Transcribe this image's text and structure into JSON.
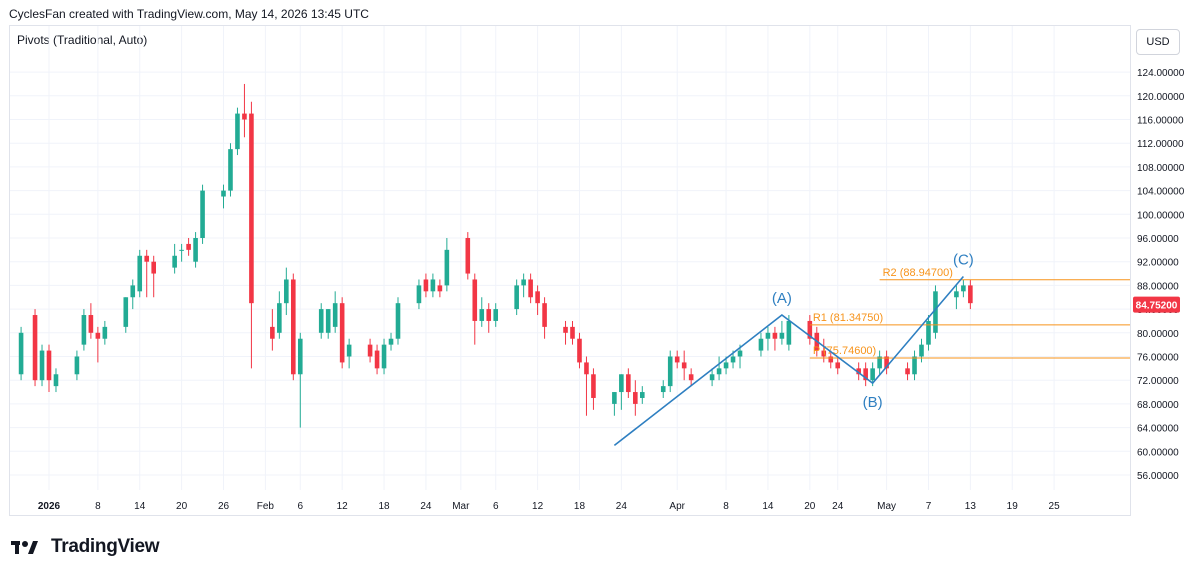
{
  "header": {
    "title": "CyclesFan created with TradingView.com, May 14, 2026 13:45 UTC",
    "indicator": "Pivots (Traditional, Auto)",
    "currency": "USD"
  },
  "footer": {
    "brand": "TradingView",
    "logo_icon": "tradingview-logo-icon"
  },
  "colors": {
    "up": "#22ab94",
    "down": "#f23645",
    "wave": "#2e7fc1",
    "pivot": "#f7931a",
    "grid": "#f0f3fa",
    "price_label": "#f23645"
  },
  "chart_data": {
    "type": "candlestick",
    "title": "",
    "xlabel": "",
    "ylabel": "",
    "ylim": [
      52,
      128
    ],
    "grid": true,
    "y_ticks": [
      "124.00000",
      "120.00000",
      "116.00000",
      "112.00000",
      "108.00000",
      "104.00000",
      "100.00000",
      "96.00000",
      "92.00000",
      "88.00000",
      "84.00000",
      "80.00000",
      "76.00000",
      "72.00000",
      "68.00000",
      "64.00000",
      "60.00000",
      "56.00000"
    ],
    "x_ticks": [
      {
        "label": "2026",
        "day": 0,
        "bold": true
      },
      {
        "label": "8",
        "day": 7
      },
      {
        "label": "14",
        "day": 13
      },
      {
        "label": "20",
        "day": 19
      },
      {
        "label": "26",
        "day": 25
      },
      {
        "label": "Feb",
        "day": 31
      },
      {
        "label": "6",
        "day": 36
      },
      {
        "label": "12",
        "day": 42
      },
      {
        "label": "18",
        "day": 48
      },
      {
        "label": "24",
        "day": 54
      },
      {
        "label": "Mar",
        "day": 59
      },
      {
        "label": "6",
        "day": 64
      },
      {
        "label": "12",
        "day": 70
      },
      {
        "label": "18",
        "day": 76
      },
      {
        "label": "24",
        "day": 82
      },
      {
        "label": "Apr",
        "day": 90
      },
      {
        "label": "8",
        "day": 97
      },
      {
        "label": "14",
        "day": 103
      },
      {
        "label": "20",
        "day": 109
      },
      {
        "label": "24",
        "day": 113
      },
      {
        "label": "May",
        "day": 120
      },
      {
        "label": "7",
        "day": 126
      },
      {
        "label": "13",
        "day": 132
      },
      {
        "label": "19",
        "day": 138
      },
      {
        "label": "25",
        "day": 144
      }
    ],
    "candles": [
      {
        "d": -4,
        "o": 73,
        "h": 81,
        "l": 72,
        "c": 80
      },
      {
        "d": -2,
        "o": 83,
        "h": 84,
        "l": 71,
        "c": 72
      },
      {
        "d": -1,
        "o": 72,
        "h": 78,
        "l": 71,
        "c": 77
      },
      {
        "d": 0,
        "o": 77,
        "h": 78,
        "l": 70,
        "c": 72
      },
      {
        "d": 1,
        "o": 71,
        "h": 74,
        "l": 70,
        "c": 73
      },
      {
        "d": 4,
        "o": 73,
        "h": 77,
        "l": 72,
        "c": 76
      },
      {
        "d": 5,
        "o": 78,
        "h": 84,
        "l": 77,
        "c": 83
      },
      {
        "d": 6,
        "o": 83,
        "h": 85,
        "l": 79,
        "c": 80
      },
      {
        "d": 7,
        "o": 80,
        "h": 81,
        "l": 75,
        "c": 79
      },
      {
        "d": 8,
        "o": 79,
        "h": 82,
        "l": 78,
        "c": 81
      },
      {
        "d": 11,
        "o": 81,
        "h": 86,
        "l": 80,
        "c": 86
      },
      {
        "d": 12,
        "o": 86,
        "h": 89,
        "l": 84,
        "c": 88
      },
      {
        "d": 13,
        "o": 87,
        "h": 94,
        "l": 86,
        "c": 93
      },
      {
        "d": 14,
        "o": 93,
        "h": 94,
        "l": 86,
        "c": 92
      },
      {
        "d": 15,
        "o": 92,
        "h": 93,
        "l": 86,
        "c": 90
      },
      {
        "d": 18,
        "o": 91,
        "h": 95,
        "l": 90,
        "c": 93
      },
      {
        "d": 19,
        "o": 94,
        "h": 95,
        "l": 92,
        "c": 94
      },
      {
        "d": 20,
        "o": 95,
        "h": 96,
        "l": 93,
        "c": 94
      },
      {
        "d": 21,
        "o": 92,
        "h": 97,
        "l": 91,
        "c": 96
      },
      {
        "d": 22,
        "o": 96,
        "h": 105,
        "l": 95,
        "c": 104
      },
      {
        "d": 25,
        "o": 103,
        "h": 105,
        "l": 101,
        "c": 104
      },
      {
        "d": 26,
        "o": 104,
        "h": 112,
        "l": 103,
        "c": 111
      },
      {
        "d": 27,
        "o": 111,
        "h": 118,
        "l": 110,
        "c": 117
      },
      {
        "d": 28,
        "o": 117,
        "h": 122,
        "l": 113,
        "c": 116
      },
      {
        "d": 29,
        "o": 117,
        "h": 119,
        "l": 74,
        "c": 85
      },
      {
        "d": 32,
        "o": 81,
        "h": 84,
        "l": 77,
        "c": 79
      },
      {
        "d": 33,
        "o": 80,
        "h": 87,
        "l": 79,
        "c": 85
      },
      {
        "d": 34,
        "o": 85,
        "h": 91,
        "l": 83,
        "c": 89
      },
      {
        "d": 35,
        "o": 89,
        "h": 90,
        "l": 72,
        "c": 73
      },
      {
        "d": 36,
        "o": 73,
        "h": 80,
        "l": 64,
        "c": 79
      },
      {
        "d": 39,
        "o": 80,
        "h": 85,
        "l": 79,
        "c": 84
      },
      {
        "d": 40,
        "o": 80,
        "h": 84,
        "l": 79,
        "c": 84
      },
      {
        "d": 41,
        "o": 81,
        "h": 87,
        "l": 80,
        "c": 85
      },
      {
        "d": 42,
        "o": 85,
        "h": 86,
        "l": 74,
        "c": 75
      },
      {
        "d": 43,
        "o": 76,
        "h": 79,
        "l": 74,
        "c": 78
      },
      {
        "d": 46,
        "o": 78,
        "h": 79,
        "l": 75,
        "c": 76
      },
      {
        "d": 47,
        "o": 77,
        "h": 78,
        "l": 73,
        "c": 74
      },
      {
        "d": 48,
        "o": 74,
        "h": 79,
        "l": 73,
        "c": 78
      },
      {
        "d": 49,
        "o": 78,
        "h": 80,
        "l": 77,
        "c": 79
      },
      {
        "d": 50,
        "o": 79,
        "h": 86,
        "l": 78,
        "c": 85
      },
      {
        "d": 53,
        "o": 85,
        "h": 89,
        "l": 84,
        "c": 88
      },
      {
        "d": 54,
        "o": 89,
        "h": 90,
        "l": 86,
        "c": 87
      },
      {
        "d": 55,
        "o": 87,
        "h": 90,
        "l": 86,
        "c": 89
      },
      {
        "d": 56,
        "o": 88,
        "h": 89,
        "l": 86,
        "c": 87
      },
      {
        "d": 57,
        "o": 88,
        "h": 96,
        "l": 87,
        "c": 94
      },
      {
        "d": 60,
        "o": 96,
        "h": 97,
        "l": 89,
        "c": 90
      },
      {
        "d": 61,
        "o": 89,
        "h": 90,
        "l": 78,
        "c": 82
      },
      {
        "d": 62,
        "o": 82,
        "h": 86,
        "l": 81,
        "c": 84
      },
      {
        "d": 63,
        "o": 84,
        "h": 85,
        "l": 80,
        "c": 82
      },
      {
        "d": 64,
        "o": 82,
        "h": 85,
        "l": 81,
        "c": 84
      },
      {
        "d": 67,
        "o": 84,
        "h": 89,
        "l": 83,
        "c": 88
      },
      {
        "d": 68,
        "o": 88,
        "h": 90,
        "l": 86,
        "c": 89
      },
      {
        "d": 69,
        "o": 89,
        "h": 90,
        "l": 85,
        "c": 86
      },
      {
        "d": 70,
        "o": 87,
        "h": 88,
        "l": 83,
        "c": 85
      },
      {
        "d": 71,
        "o": 85,
        "h": 86,
        "l": 79,
        "c": 81
      },
      {
        "d": 74,
        "o": 81,
        "h": 82,
        "l": 78,
        "c": 80
      },
      {
        "d": 75,
        "o": 81,
        "h": 82,
        "l": 78,
        "c": 79
      },
      {
        "d": 76,
        "o": 79,
        "h": 80,
        "l": 74,
        "c": 75
      },
      {
        "d": 77,
        "o": 75,
        "h": 76,
        "l": 66,
        "c": 73
      },
      {
        "d": 78,
        "o": 73,
        "h": 74,
        "l": 67,
        "c": 69
      },
      {
        "d": 81,
        "o": 68,
        "h": 70,
        "l": 66,
        "c": 70
      },
      {
        "d": 82,
        "o": 70,
        "h": 73,
        "l": 67,
        "c": 73
      },
      {
        "d": 83,
        "o": 73,
        "h": 74,
        "l": 69,
        "c": 70
      },
      {
        "d": 84,
        "o": 70,
        "h": 72,
        "l": 66,
        "c": 68
      },
      {
        "d": 85,
        "o": 69,
        "h": 71,
        "l": 68,
        "c": 70
      },
      {
        "d": 88,
        "o": 70,
        "h": 72,
        "l": 69,
        "c": 71
      },
      {
        "d": 89,
        "o": 71,
        "h": 77,
        "l": 70,
        "c": 76
      },
      {
        "d": 90,
        "o": 76,
        "h": 77,
        "l": 74,
        "c": 75
      },
      {
        "d": 91,
        "o": 75,
        "h": 77,
        "l": 72,
        "c": 74
      },
      {
        "d": 92,
        "o": 73,
        "h": 74,
        "l": 71,
        "c": 72
      },
      {
        "d": 95,
        "o": 72,
        "h": 74,
        "l": 71,
        "c": 73
      },
      {
        "d": 96,
        "o": 73,
        "h": 76,
        "l": 72,
        "c": 74
      },
      {
        "d": 97,
        "o": 74,
        "h": 76,
        "l": 73,
        "c": 75
      },
      {
        "d": 98,
        "o": 75,
        "h": 77,
        "l": 74,
        "c": 76
      },
      {
        "d": 99,
        "o": 76,
        "h": 78,
        "l": 74,
        "c": 77
      },
      {
        "d": 102,
        "o": 77,
        "h": 80,
        "l": 76,
        "c": 79
      },
      {
        "d": 103,
        "o": 79,
        "h": 81,
        "l": 77,
        "c": 80
      },
      {
        "d": 104,
        "o": 80,
        "h": 81,
        "l": 77,
        "c": 79
      },
      {
        "d": 105,
        "o": 79,
        "h": 82,
        "l": 78,
        "c": 80
      },
      {
        "d": 106,
        "o": 78,
        "h": 83,
        "l": 77,
        "c": 82
      },
      {
        "d": 109,
        "o": 82,
        "h": 83,
        "l": 78,
        "c": 79
      },
      {
        "d": 110,
        "o": 80,
        "h": 81,
        "l": 76,
        "c": 77
      },
      {
        "d": 111,
        "o": 77,
        "h": 79,
        "l": 75,
        "c": 76
      },
      {
        "d": 112,
        "o": 76,
        "h": 77,
        "l": 74,
        "c": 75
      },
      {
        "d": 113,
        "o": 75,
        "h": 76,
        "l": 73,
        "c": 74
      },
      {
        "d": 116,
        "o": 74,
        "h": 75,
        "l": 72,
        "c": 73
      },
      {
        "d": 117,
        "o": 74,
        "h": 75,
        "l": 71,
        "c": 72
      },
      {
        "d": 118,
        "o": 72,
        "h": 75,
        "l": 71,
        "c": 74
      },
      {
        "d": 119,
        "o": 74,
        "h": 77,
        "l": 73,
        "c": 76
      },
      {
        "d": 120,
        "o": 76,
        "h": 77,
        "l": 73,
        "c": 74
      },
      {
        "d": 123,
        "o": 74,
        "h": 75,
        "l": 72,
        "c": 73
      },
      {
        "d": 124,
        "o": 73,
        "h": 77,
        "l": 72,
        "c": 76
      },
      {
        "d": 125,
        "o": 76,
        "h": 79,
        "l": 75,
        "c": 78
      },
      {
        "d": 126,
        "o": 78,
        "h": 83,
        "l": 77,
        "c": 82
      },
      {
        "d": 127,
        "o": 80,
        "h": 88,
        "l": 79,
        "c": 87
      },
      {
        "d": 130,
        "o": 86,
        "h": 88,
        "l": 84,
        "c": 87
      },
      {
        "d": 131,
        "o": 87,
        "h": 89,
        "l": 86,
        "c": 88
      },
      {
        "d": 132,
        "o": 88,
        "h": 89,
        "l": 84,
        "c": 85
      }
    ],
    "last_price": {
      "value": 84.752,
      "label": "84.75200"
    },
    "pivots": [
      {
        "name": "R2",
        "label": "R2 (88.94700)",
        "value": 88.947,
        "start_day": 119
      },
      {
        "name": "R1",
        "label": "R1 (81.34750)",
        "value": 81.3475,
        "start_day": 109
      },
      {
        "name": "P",
        "label": "P (75.74600)",
        "value": 75.746,
        "start_day": 109
      }
    ],
    "wave": {
      "points": [
        {
          "label": "",
          "day": 81,
          "value": 61
        },
        {
          "label": "(A)",
          "day": 105,
          "value": 83
        },
        {
          "label": "(B)",
          "day": 118,
          "value": 71.5
        },
        {
          "label": "(C)",
          "day": 131,
          "value": 89.5
        }
      ]
    }
  }
}
